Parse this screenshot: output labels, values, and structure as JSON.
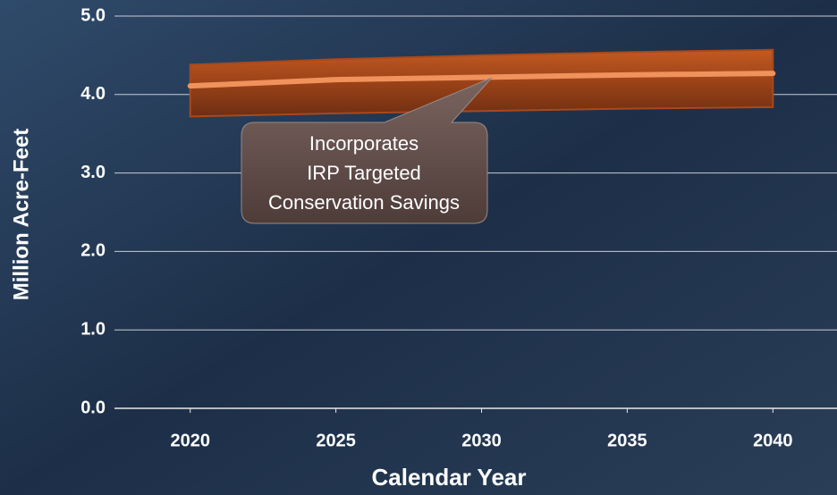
{
  "chart_data": {
    "type": "line",
    "x": [
      2020,
      2025,
      2030,
      2035,
      2040
    ],
    "values": [
      4.11,
      4.19,
      4.22,
      4.25,
      4.27
    ],
    "color": "#f0925c",
    "band_lower": [
      3.72,
      3.76,
      3.79,
      3.82,
      3.84
    ],
    "band_upper": [
      4.38,
      4.45,
      4.5,
      4.54,
      4.57
    ],
    "band_color": "#a8491c",
    "xlim": [
      2017.4,
      2042.2
    ],
    "xticks": [
      2020,
      2025,
      2030,
      2035,
      2040
    ],
    "ylim": [
      0,
      5
    ],
    "yticks": [
      {
        "value": 0,
        "label": "0.0"
      },
      {
        "value": 1,
        "label": "1.0"
      },
      {
        "value": 2,
        "label": "2.0"
      },
      {
        "value": 3,
        "label": "3.0"
      },
      {
        "value": 4,
        "label": "4.0"
      },
      {
        "value": 5,
        "label": "5.0"
      }
    ],
    "grid": true,
    "xlabel": "Calendar Year",
    "ylabel": "Million Acre-Feet",
    "annotation": [
      "Incorporates",
      "IRP Targeted",
      "Conservation Savings"
    ]
  }
}
